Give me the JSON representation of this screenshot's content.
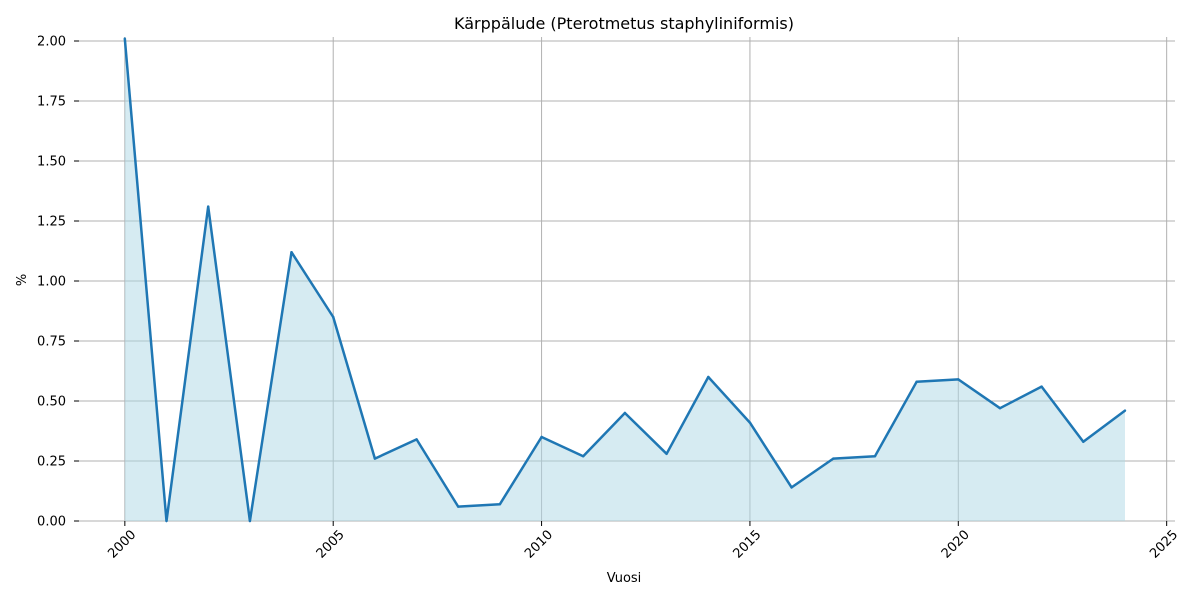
{
  "chart_data": {
    "type": "area",
    "title": "Kärppälude (Pterotmetus staphyliniformis)",
    "xlabel": "Vuosi",
    "ylabel": "%",
    "xlim": [
      1998.9,
      2025.2
    ],
    "ylim": [
      0,
      2.0
    ],
    "xticks": [
      2000,
      2005,
      2010,
      2015,
      2020,
      2025
    ],
    "yticks": [
      0.0,
      0.25,
      0.5,
      0.75,
      1.0,
      1.25,
      1.5,
      1.75,
      2.0
    ],
    "xtick_labels": [
      "2000",
      "2005",
      "2010",
      "2015",
      "2020",
      "2025"
    ],
    "ytick_labels": [
      "0.00",
      "0.25",
      "0.50",
      "0.75",
      "1.00",
      "1.25",
      "1.50",
      "1.75",
      "2.00"
    ],
    "grid": true,
    "line_color": "#1f77b4",
    "fill_color": "#add8e6",
    "x": [
      2000,
      2001,
      2002,
      2003,
      2004,
      2005,
      2006,
      2007,
      2008,
      2009,
      2010,
      2011,
      2012,
      2013,
      2014,
      2015,
      2016,
      2017,
      2018,
      2019,
      2020,
      2021,
      2022,
      2023,
      2024
    ],
    "values": [
      2.01,
      0.0,
      1.31,
      0.0,
      1.12,
      0.85,
      0.26,
      0.34,
      0.06,
      0.07,
      0.35,
      0.27,
      0.45,
      0.28,
      0.6,
      0.41,
      0.14,
      0.26,
      0.27,
      0.58,
      0.59,
      0.47,
      0.56,
      0.33,
      0.46
    ]
  }
}
